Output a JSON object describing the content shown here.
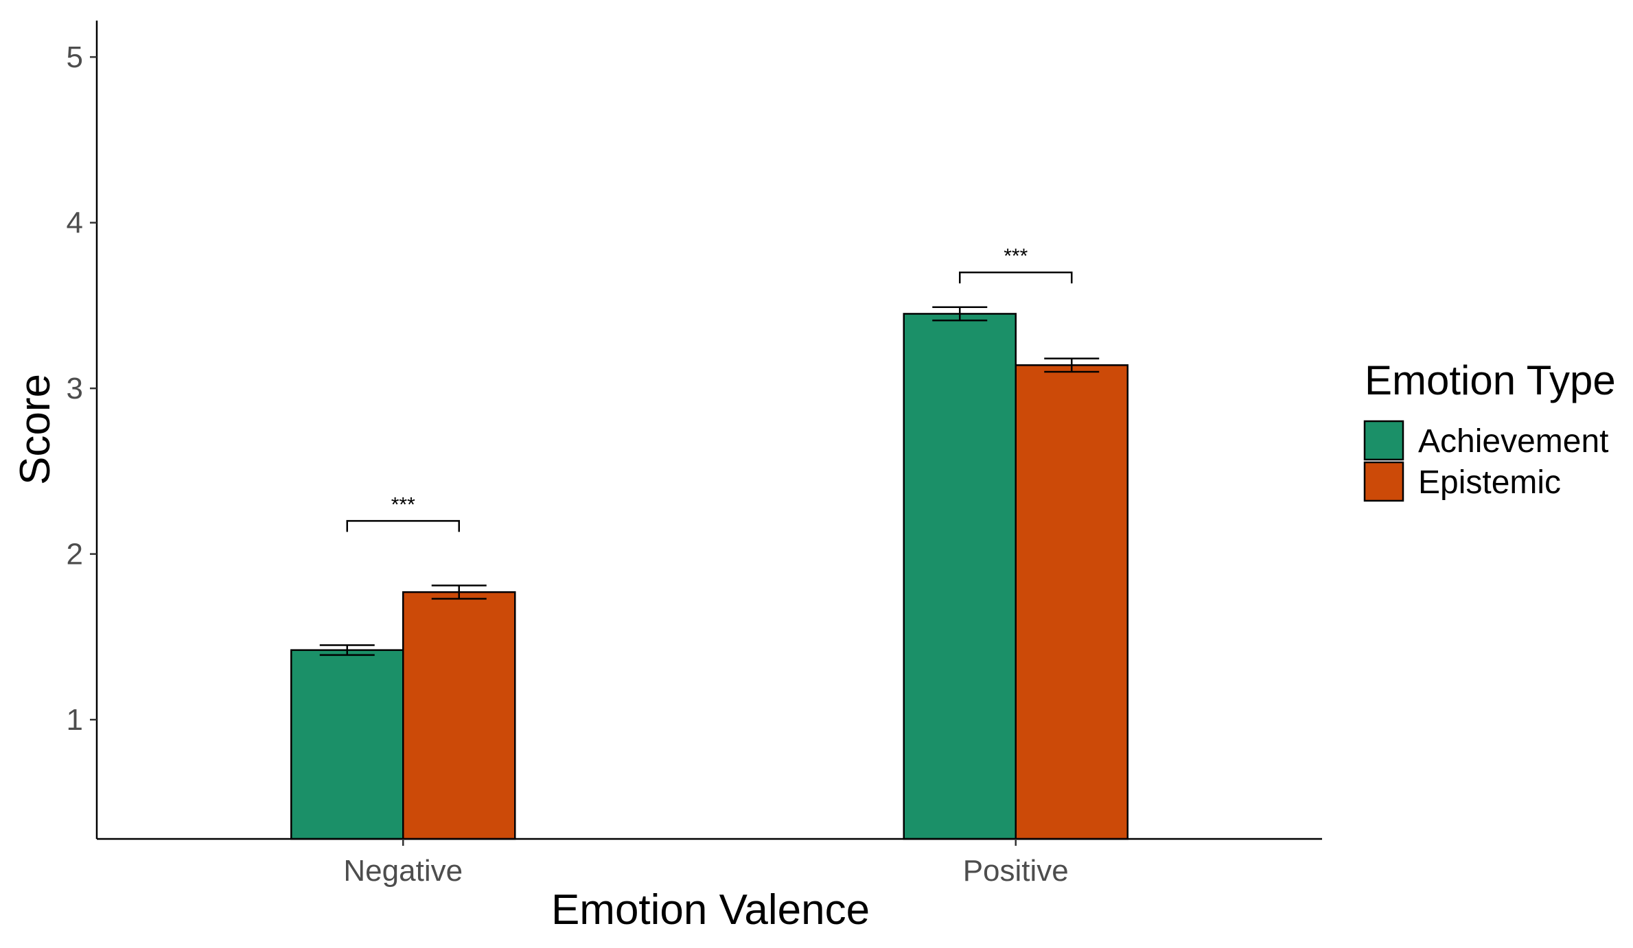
{
  "chart_data": {
    "type": "bar",
    "title": "",
    "xlabel": "Emotion Valence",
    "ylabel": "Score",
    "categories": [
      "Negative",
      "Positive"
    ],
    "series": [
      {
        "name": "Achievement",
        "color": "#1b9068",
        "values": [
          1.42,
          3.45
        ],
        "error": [
          0.03,
          0.04
        ]
      },
      {
        "name": "Epistemic",
        "color": "#cc4a08",
        "values": [
          1.77,
          3.14
        ],
        "error": [
          0.04,
          0.04
        ]
      }
    ],
    "ylim": [
      0.28,
      5.22
    ],
    "yticks": [
      1,
      2,
      3,
      4,
      5
    ],
    "grid": false,
    "legend": {
      "title": "Emotion Type",
      "position": "right"
    },
    "annotations": [
      {
        "category": "Negative",
        "text": "***",
        "y": 2.2
      },
      {
        "category": "Positive",
        "text": "***",
        "y": 3.7
      }
    ]
  }
}
